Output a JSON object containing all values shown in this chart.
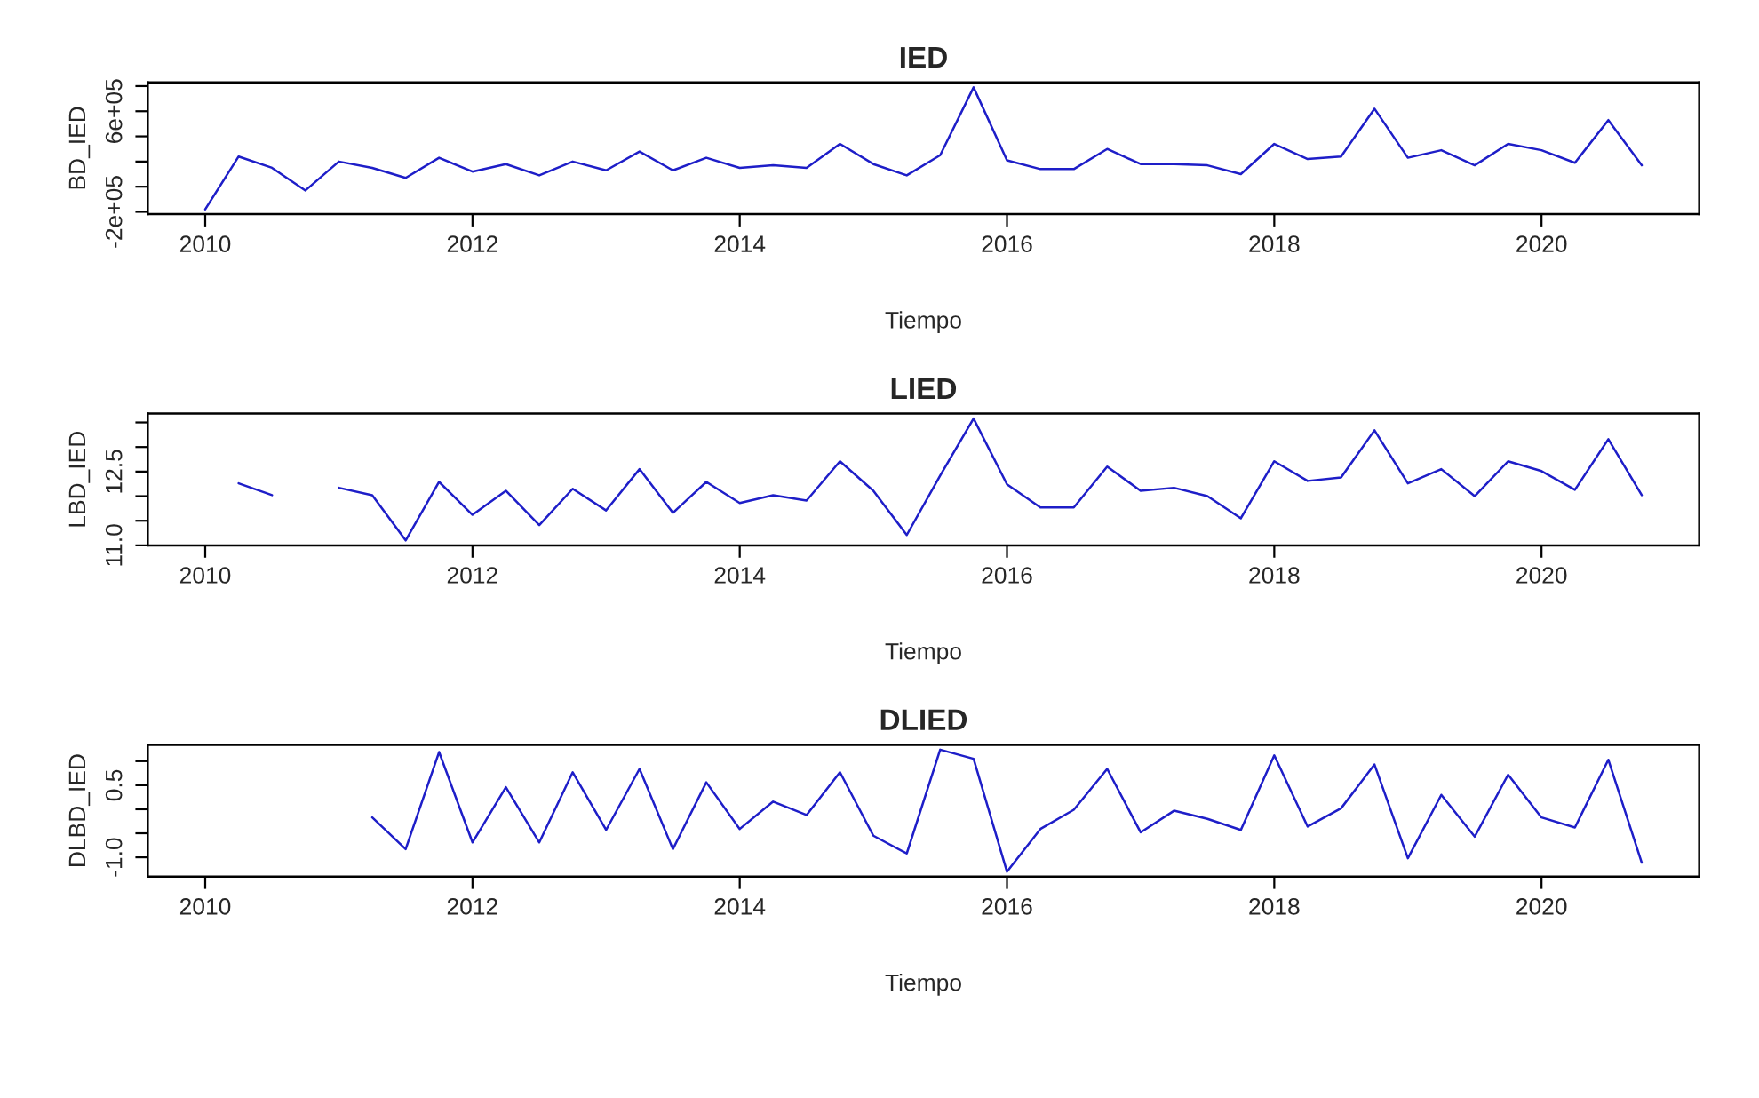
{
  "chart_data": [
    {
      "type": "line",
      "title": "IED",
      "xlabel": "Tiempo",
      "ylabel": "BD_IED",
      "color": "#1e1ec8",
      "x": [
        2010,
        2010.25,
        2010.5,
        2010.75,
        2011,
        2011.25,
        2011.5,
        2011.75,
        2012,
        2012.25,
        2012.5,
        2012.75,
        2013,
        2013.25,
        2013.5,
        2013.75,
        2014,
        2014.25,
        2014.5,
        2014.75,
        2015,
        2015.25,
        2015.5,
        2015.75,
        2016,
        2016.25,
        2016.5,
        2016.75,
        2017,
        2017.25,
        2017.5,
        2017.75,
        2018,
        2018.25,
        2018.5,
        2018.75,
        2019,
        2019.25,
        2019.5,
        2019.75,
        2020,
        2020.25,
        2020.5,
        2020.75
      ],
      "values": [
        -180000,
        240000,
        150000,
        -30000,
        200000,
        150000,
        70000,
        230000,
        120000,
        180000,
        90000,
        200000,
        130000,
        280000,
        130000,
        230000,
        150000,
        170000,
        150000,
        340000,
        180000,
        90000,
        250000,
        790000,
        210000,
        140000,
        140000,
        300000,
        180000,
        180000,
        170000,
        100000,
        340000,
        220000,
        240000,
        620000,
        230000,
        290000,
        170000,
        340000,
        290000,
        190000,
        530000,
        170000
      ],
      "xlim": [
        2009.57,
        2021.18
      ],
      "xticks": [
        2010,
        2012,
        2014,
        2016,
        2018,
        2020
      ],
      "ylim": [
        -218000,
        830000
      ],
      "yticks": [
        {
          "value": -200000,
          "label": "-2e+05"
        },
        {
          "value": 0,
          "label": null
        },
        {
          "value": 200000,
          "label": null
        },
        {
          "value": 400000,
          "label": null
        },
        {
          "value": 600000,
          "label": "6e+05"
        },
        {
          "value": 800000,
          "label": null
        }
      ]
    },
    {
      "type": "line",
      "title": "LIED",
      "xlabel": "Tiempo",
      "ylabel": "LBD_IED",
      "color": "#1e1ec8",
      "x": [
        2010.25,
        2010.5,
        2010.75,
        2011,
        2011.25,
        2011.5,
        2011.75,
        2012,
        2012.25,
        2012.5,
        2012.75,
        2013,
        2013.25,
        2013.5,
        2013.75,
        2014,
        2014.25,
        2014.5,
        2014.75,
        2015,
        2015.25,
        2015.5,
        2015.75,
        2016,
        2016.25,
        2016.5,
        2016.75,
        2017,
        2017.25,
        2017.5,
        2017.75,
        2018,
        2018.25,
        2018.5,
        2018.75,
        2019,
        2019.25,
        2019.5,
        2019.75,
        2020,
        2020.25,
        2020.5,
        2020.75
      ],
      "values": [
        12.26,
        12.02,
        null,
        12.17,
        12.02,
        11.1,
        12.29,
        11.62,
        12.11,
        11.41,
        12.15,
        11.71,
        12.55,
        11.66,
        12.29,
        11.86,
        12.02,
        11.91,
        12.71,
        12.11,
        11.21,
        12.42,
        13.58,
        12.24,
        11.77,
        11.77,
        12.6,
        12.11,
        12.17,
        12.0,
        11.55,
        12.71,
        12.31,
        12.38,
        13.34,
        12.26,
        12.55,
        12.0,
        12.71,
        12.51,
        12.13,
        13.16,
        12.02
      ],
      "xlim": [
        2009.57,
        2021.18
      ],
      "xticks": [
        2010,
        2012,
        2014,
        2016,
        2018,
        2020
      ],
      "ylim": [
        11.0,
        13.68
      ],
      "yticks": [
        {
          "value": 11.0,
          "label": "11.0"
        },
        {
          "value": 11.5,
          "label": null
        },
        {
          "value": 12.0,
          "label": null
        },
        {
          "value": 12.5,
          "label": "12.5"
        },
        {
          "value": 13.0,
          "label": null
        },
        {
          "value": 13.5,
          "label": null
        }
      ]
    },
    {
      "type": "line",
      "title": "DLIED",
      "xlabel": "Tiempo",
      "ylabel": "DLBD_IED",
      "color": "#1e1ec8",
      "x": [
        2011.25,
        2011.5,
        2011.75,
        2012,
        2012.25,
        2012.5,
        2012.75,
        2013,
        2013.25,
        2013.5,
        2013.75,
        2014,
        2014.25,
        2014.5,
        2014.75,
        2015,
        2015.25,
        2015.5,
        2015.75,
        2016,
        2016.25,
        2016.5,
        2016.75,
        2017,
        2017.25,
        2017.5,
        2017.75,
        2018,
        2018.25,
        2018.5,
        2018.75,
        2019,
        2019.25,
        2019.5,
        2019.75,
        2020,
        2020.25,
        2020.5,
        2020.75
      ],
      "values": [
        -0.17,
        -0.83,
        1.19,
        -0.69,
        0.46,
        -0.69,
        0.77,
        -0.43,
        0.84,
        -0.83,
        0.56,
        -0.41,
        0.16,
        -0.12,
        0.77,
        -0.55,
        -0.92,
        1.24,
        1.05,
        -1.3,
        -0.41,
        -0.01,
        0.84,
        -0.48,
        -0.03,
        -0.2,
        -0.43,
        1.12,
        -0.36,
        0.02,
        0.93,
        -1.02,
        0.3,
        -0.57,
        0.72,
        -0.17,
        -0.38,
        1.03,
        -1.11
      ],
      "xlim": [
        2009.57,
        2021.18
      ],
      "xticks": [
        2010,
        2012,
        2014,
        2016,
        2018,
        2020
      ],
      "ylim": [
        -1.4,
        1.34
      ],
      "yticks": [
        {
          "value": -1.0,
          "label": "-1.0"
        },
        {
          "value": -0.5,
          "label": null
        },
        {
          "value": 0.0,
          "label": null
        },
        {
          "value": 0.5,
          "label": "0.5"
        },
        {
          "value": 1.0,
          "label": null
        }
      ]
    }
  ]
}
